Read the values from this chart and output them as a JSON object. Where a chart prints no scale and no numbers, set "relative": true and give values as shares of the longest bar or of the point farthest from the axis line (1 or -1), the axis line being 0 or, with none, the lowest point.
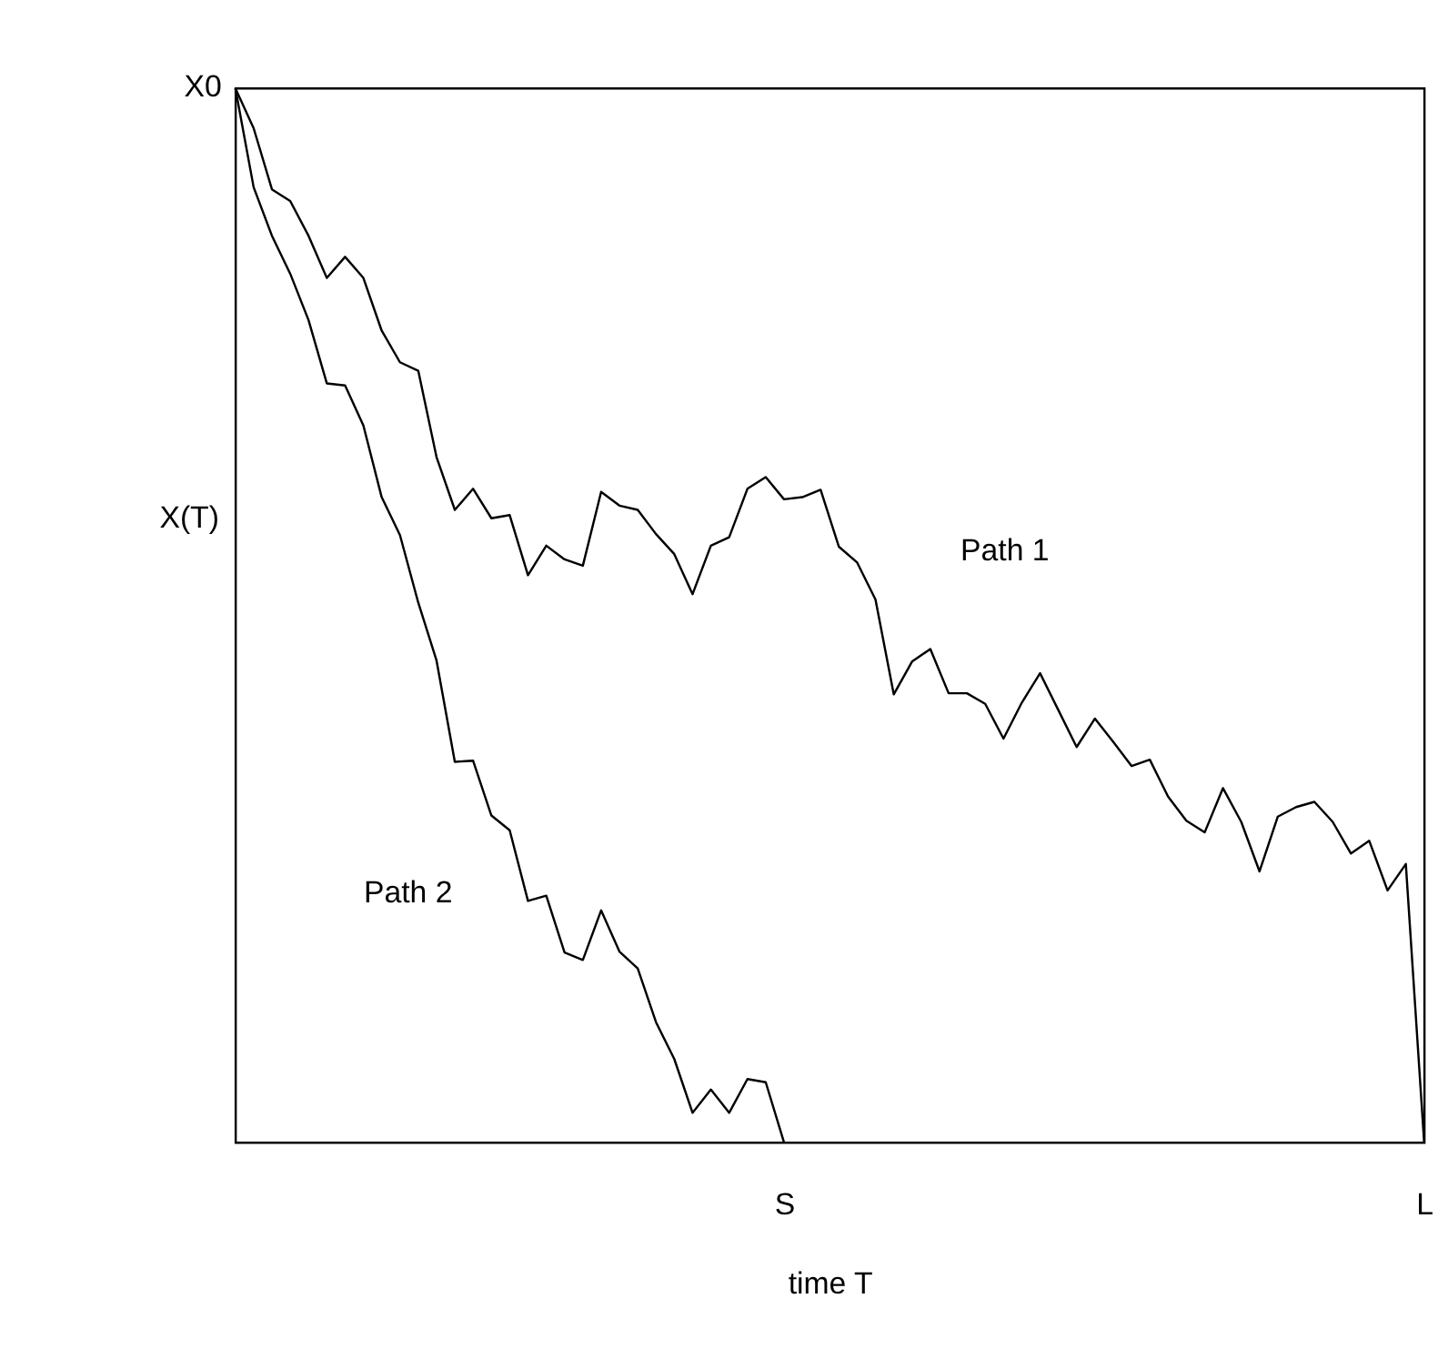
{
  "chart_data": {
    "type": "line",
    "relative": true,
    "xlabel": "time T",
    "ylabel": "X(T)",
    "categories": [
      null,
      null,
      null,
      null,
      null,
      null,
      null,
      null,
      null,
      null,
      null,
      null,
      null,
      null,
      null,
      null,
      null,
      null,
      null,
      null,
      null,
      null,
      null,
      null,
      null,
      null,
      null,
      null,
      null,
      null,
      "S",
      null,
      null,
      null,
      null,
      null,
      null,
      null,
      null,
      null,
      null,
      null,
      null,
      null,
      null,
      null,
      null,
      null,
      null,
      null,
      null,
      null,
      null,
      null,
      null,
      null,
      null,
      null,
      null,
      null,
      null,
      null,
      null,
      null,
      null,
      "L"
    ],
    "grid": false,
    "legend": false,
    "marker": "none",
    "line_style": "solid",
    "annotations": [
      "X0"
    ],
    "series": [
      {
        "name": "Path 1",
        "color": "#000000",
        "values": [
          1,
          0.962,
          0.904,
          0.893,
          0.86,
          0.82,
          0.84,
          0.82,
          0.77,
          0.74,
          0.732,
          0.65,
          0.6,
          0.62,
          0.592,
          0.595,
          0.538,
          0.566,
          0.553,
          0.547,
          0.617,
          0.604,
          0.6,
          0.577,
          0.558,
          0.52,
          0.566,
          0.574,
          0.62,
          0.631,
          0.61,
          0.612,
          0.619,
          0.565,
          0.55,
          0.515,
          0.425,
          0.456,
          0.468,
          0.426,
          0.426,
          0.416,
          0.383,
          0.417,
          0.445,
          0.41,
          0.375,
          0.402,
          0.38,
          0.357,
          0.363,
          0.328,
          0.305,
          0.294,
          0.336,
          0.304,
          0.257,
          0.309,
          0.318,
          0.323,
          0.304,
          0.274,
          0.286,
          0.239,
          0.264,
          0
        ]
      },
      {
        "name": "Path 2",
        "color": "#000000",
        "values": [
          1,
          0.906,
          0.86,
          0.824,
          0.78,
          0.72,
          0.718,
          0.68,
          0.612,
          0.576,
          0.512,
          0.457,
          0.361,
          0.362,
          0.31,
          0.296,
          0.229,
          0.234,
          0.18,
          0.173,
          0.22,
          0.181,
          0.165,
          0.114,
          0.079,
          0.028,
          0.05,
          0.028,
          0.06,
          0.057,
          0,
          null,
          null,
          null,
          null,
          null,
          null,
          null,
          null,
          null,
          null,
          null,
          null,
          null,
          null,
          null,
          null,
          null,
          null,
          null,
          null,
          null,
          null,
          null,
          null,
          null,
          null,
          null,
          null,
          null,
          null,
          null,
          null,
          null,
          null,
          null
        ]
      }
    ]
  }
}
